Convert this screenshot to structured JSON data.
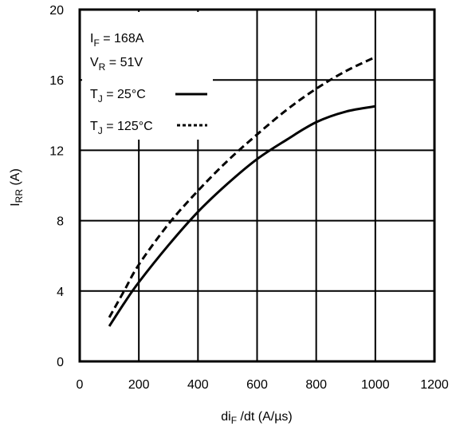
{
  "chart_data": {
    "type": "line",
    "x_ticks": [
      0,
      200,
      400,
      600,
      800,
      1000,
      1200
    ],
    "y_ticks": [
      0,
      4,
      8,
      12,
      16,
      20
    ],
    "xlim": [
      0,
      1200
    ],
    "ylim": [
      0,
      20
    ],
    "grid": true,
    "xlabel": {
      "main": "di",
      "sub": "F",
      "rest": " /dt (A/µs)"
    },
    "ylabel": {
      "main": "I",
      "sub": "RR",
      "rest": " (A)"
    },
    "legend": {
      "placement": "top-left",
      "lines": [
        {
          "main": "I",
          "sub": "F",
          "rest": " = 168A"
        },
        {
          "main": "V",
          "sub": "R",
          "rest": " = 51V"
        },
        {
          "main": "T",
          "sub": "J",
          "rest": " = 25°C"
        },
        {
          "main": "T",
          "sub": "J",
          "rest": " = 125°C"
        }
      ]
    },
    "series": [
      {
        "condition": "T_J = 25°C",
        "style": "solid",
        "x": [
          100,
          150,
          200,
          300,
          400,
          500,
          600,
          700,
          800,
          900,
          1000
        ],
        "y": [
          2.0,
          3.3,
          4.5,
          6.6,
          8.5,
          10.1,
          11.5,
          12.6,
          13.6,
          14.2,
          14.5
        ]
      },
      {
        "condition": "T_J = 125°C",
        "style": "dashed",
        "x": [
          100,
          150,
          200,
          300,
          400,
          500,
          600,
          700,
          800,
          900,
          1000
        ],
        "y": [
          2.5,
          4.0,
          5.5,
          7.8,
          9.7,
          11.4,
          12.9,
          14.3,
          15.5,
          16.5,
          17.3
        ]
      }
    ]
  }
}
